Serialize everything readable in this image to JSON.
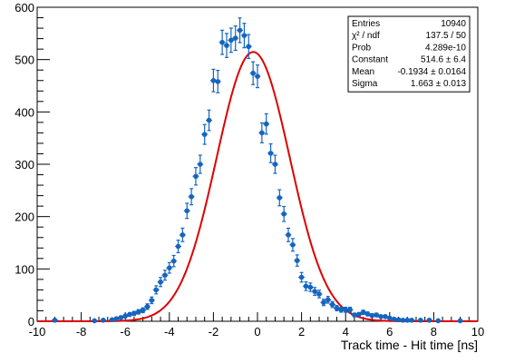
{
  "chart_data": {
    "type": "scatter",
    "title": "",
    "xlabel": "Track time - Hit time [ns]",
    "ylabel": "",
    "xlim": [
      -10,
      10
    ],
    "ylim": [
      0,
      600
    ],
    "x_ticks": [
      -10,
      -8,
      -6,
      -4,
      -2,
      0,
      2,
      4,
      6,
      8,
      10
    ],
    "y_ticks": [
      0,
      100,
      200,
      300,
      400,
      500,
      600
    ],
    "grid": false,
    "legend": "none",
    "colors": {
      "points": "#1565c0",
      "fit": "#dd0000",
      "axis": "#000000"
    },
    "series": [
      {
        "kind": "points-with-error-bars",
        "x": [
          -9.2,
          -7.4,
          -7.0,
          -6.6,
          -6.4,
          -6.2,
          -6.0,
          -5.8,
          -5.6,
          -5.4,
          -5.2,
          -5.0,
          -4.8,
          -4.6,
          -4.4,
          -4.2,
          -4.0,
          -3.8,
          -3.6,
          -3.4,
          -3.2,
          -3.0,
          -2.8,
          -2.6,
          -2.4,
          -2.2,
          -2.0,
          -1.8,
          -1.6,
          -1.4,
          -1.2,
          -1.0,
          -0.8,
          -0.6,
          -0.4,
          -0.2,
          0.0,
          0.2,
          0.4,
          0.6,
          0.8,
          1.0,
          1.2,
          1.4,
          1.6,
          1.8,
          2.0,
          2.2,
          2.4,
          2.6,
          2.8,
          3.0,
          3.2,
          3.4,
          3.6,
          3.8,
          4.0,
          4.2,
          4.4,
          4.6,
          4.8,
          5.0,
          5.2,
          5.4,
          5.6,
          5.8,
          6.0,
          6.2,
          6.4,
          6.6,
          6.8,
          7.0,
          7.4,
          7.8,
          8.2,
          9.2
        ],
        "y": [
          2,
          1,
          2,
          3,
          5,
          7,
          10,
          13,
          15,
          18,
          21,
          28,
          40,
          60,
          75,
          88,
          102,
          115,
          143,
          165,
          211,
          238,
          277,
          300,
          357,
          384,
          460,
          458,
          533,
          527,
          537,
          541,
          556,
          546,
          525,
          474,
          468,
          360,
          377,
          321,
          300,
          236,
          205,
          165,
          146,
          116,
          84,
          67,
          65,
          57,
          52,
          36,
          41,
          32,
          25,
          22,
          22,
          22,
          12,
          13,
          17,
          14,
          11,
          12,
          9,
          9,
          6,
          4,
          3,
          2,
          2,
          2,
          2,
          2,
          1,
          1
        ],
        "yerr_approx": "sqrt(N)"
      },
      {
        "kind": "gaussian-fit",
        "constant": 514.6,
        "mean": -0.1934,
        "sigma": 1.663
      }
    ],
    "stats_box": [
      {
        "label": "Entries",
        "value": "10940"
      },
      {
        "label": "χ² / ndf",
        "value": "137.5 / 50"
      },
      {
        "label": "Prob",
        "value": "4.289e-10"
      },
      {
        "label": "Constant",
        "value": "514.6 ± 6.4"
      },
      {
        "label": "Mean",
        "value": "-0.1934 ± 0.0164"
      },
      {
        "label": "Sigma",
        "value": "1.663 ± 0.013"
      }
    ]
  }
}
